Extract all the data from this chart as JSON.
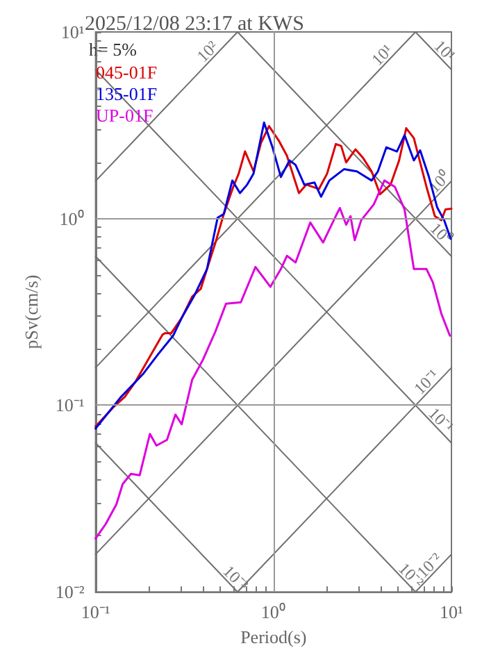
{
  "chart_data": {
    "type": "line",
    "title": "2025/12/08 23:17 at KWS",
    "xlabel": "Period(s)",
    "ylabel": "pSv(cm/s)",
    "log": "xy",
    "grid": true,
    "legend": "top left",
    "marker": "none",
    "xlim": [
      0.1,
      10
    ],
    "ylim": [
      0.01,
      10
    ],
    "xticks": [
      {
        "value": 0.1,
        "label": "10⁻¹"
      },
      {
        "value": 0.2,
        "label": null
      },
      {
        "value": 0.3,
        "label": null
      },
      {
        "value": 0.4,
        "label": null
      },
      {
        "value": 0.5,
        "label": null
      },
      {
        "value": 0.6,
        "label": null
      },
      {
        "value": 0.7,
        "label": null
      },
      {
        "value": 0.8,
        "label": null
      },
      {
        "value": 0.9,
        "label": null
      },
      {
        "value": 1,
        "label": "10⁰"
      },
      {
        "value": 2,
        "label": null
      },
      {
        "value": 3,
        "label": null
      },
      {
        "value": 4,
        "label": null
      },
      {
        "value": 5,
        "label": null
      },
      {
        "value": 6,
        "label": null
      },
      {
        "value": 7,
        "label": null
      },
      {
        "value": 8,
        "label": null
      },
      {
        "value": 9,
        "label": null
      },
      {
        "value": 10,
        "label": "10¹"
      }
    ],
    "yticks": [
      {
        "value": 0.01,
        "label": "10⁻²"
      },
      {
        "value": 0.02,
        "label": null
      },
      {
        "value": 0.03,
        "label": null
      },
      {
        "value": 0.04,
        "label": null
      },
      {
        "value": 0.05,
        "label": null
      },
      {
        "value": 0.06,
        "label": null
      },
      {
        "value": 0.07,
        "label": null
      },
      {
        "value": 0.08,
        "label": null
      },
      {
        "value": 0.09,
        "label": null
      },
      {
        "value": 0.1,
        "label": "10⁻¹"
      },
      {
        "value": 0.2,
        "label": null
      },
      {
        "value": 0.3,
        "label": null
      },
      {
        "value": 0.4,
        "label": null
      },
      {
        "value": 0.5,
        "label": null
      },
      {
        "value": 0.6,
        "label": null
      },
      {
        "value": 0.7,
        "label": null
      },
      {
        "value": 0.8,
        "label": null
      },
      {
        "value": 0.9,
        "label": null
      },
      {
        "value": 1,
        "label": "10⁰"
      },
      {
        "value": 2,
        "label": null
      },
      {
        "value": 3,
        "label": null
      },
      {
        "value": 4,
        "label": null
      },
      {
        "value": 5,
        "label": null
      },
      {
        "value": 6,
        "label": null
      },
      {
        "value": 7,
        "label": null
      },
      {
        "value": 8,
        "label": null
      },
      {
        "value": 9,
        "label": null
      },
      {
        "value": 10,
        "label": "10¹"
      }
    ],
    "series": [
      {
        "name": "045-01F",
        "color": "#dd0000",
        "x": [
          0.1,
          0.127,
          0.146,
          0.167,
          0.197,
          0.238,
          0.245,
          0.266,
          0.305,
          0.349,
          0.39,
          0.423,
          0.472,
          0.526,
          0.594,
          0.637,
          0.692,
          0.772,
          0.851,
          0.944,
          1.07,
          1.19,
          1.39,
          1.53,
          1.8,
          2.0,
          2.24,
          2.4,
          2.56,
          2.89,
          3.19,
          3.56,
          3.97,
          4.55,
          5.08,
          5.57,
          6.15,
          6.67,
          7.24,
          8.07,
          8.77,
          9.26,
          10
        ],
        "values": [
          0.0769,
          0.0984,
          0.111,
          0.133,
          0.175,
          0.239,
          0.243,
          0.243,
          0.294,
          0.382,
          0.42,
          0.537,
          0.745,
          1.06,
          1.48,
          1.74,
          2.29,
          1.79,
          2.55,
          3.13,
          2.62,
          2.17,
          1.37,
          1.52,
          1.44,
          1.74,
          2.51,
          2.45,
          2.0,
          2.35,
          2.11,
          1.79,
          1.35,
          1.52,
          2.05,
          3.05,
          2.7,
          2.0,
          1.48,
          1.03,
          0.98,
          1.12,
          1.13
        ]
      },
      {
        "name": "135-01F",
        "color": "#0000dd",
        "x": [
          0.1,
          0.138,
          0.186,
          0.226,
          0.273,
          0.305,
          0.359,
          0.423,
          0.485,
          0.526,
          0.587,
          0.648,
          0.711,
          0.772,
          0.885,
          0.987,
          1.1,
          1.23,
          1.33,
          1.49,
          1.7,
          1.85,
          2.06,
          2.49,
          2.94,
          3.56,
          3.86,
          4.31,
          4.94,
          5.45,
          6.15,
          6.67,
          7.45,
          8.31,
          9.1,
          9.9
        ],
        "values": [
          0.075,
          0.11,
          0.148,
          0.189,
          0.236,
          0.294,
          0.387,
          0.537,
          1.01,
          1.06,
          1.6,
          1.37,
          1.52,
          1.74,
          3.27,
          2.41,
          1.67,
          2.05,
          1.94,
          1.52,
          1.56,
          1.31,
          1.6,
          1.84,
          1.79,
          1.6,
          1.79,
          2.41,
          2.29,
          2.8,
          2.05,
          2.32,
          1.69,
          1.15,
          0.98,
          0.78
        ]
      },
      {
        "name": "UP-01F",
        "color": "#dd00dd",
        "x": [
          0.1,
          0.114,
          0.131,
          0.142,
          0.158,
          0.177,
          0.202,
          0.22,
          0.252,
          0.281,
          0.305,
          0.349,
          0.401,
          0.472,
          0.541,
          0.655,
          0.792,
          0.96,
          1.1,
          1.19,
          1.33,
          1.61,
          1.9,
          2.18,
          2.36,
          2.56,
          2.71,
          2.86,
          3.11,
          3.66,
          4.2,
          4.81,
          5.45,
          6.15,
          7.24,
          7.86,
          8.77,
          9.8
        ],
        "values": [
          0.0193,
          0.0231,
          0.0295,
          0.0378,
          0.0429,
          0.0422,
          0.0702,
          0.0608,
          0.0653,
          0.0891,
          0.0791,
          0.137,
          0.175,
          0.249,
          0.35,
          0.356,
          0.551,
          0.431,
          0.537,
          0.632,
          0.582,
          0.953,
          0.745,
          0.98,
          1.14,
          0.927,
          1.03,
          0.766,
          0.98,
          1.19,
          1.6,
          1.48,
          1.12,
          0.537,
          0.537,
          0.456,
          0.31,
          0.236
        ]
      },
      {
        "color": "#707070",
        "x": [
          0.1,
          0.628
        ],
        "values": [
          1.59,
          10
        ]
      },
      {
        "color": "#707070",
        "x": [
          0.1,
          6.28
        ],
        "values": [
          0.159,
          10
        ]
      },
      {
        "color": "#707070",
        "x": [
          0.1,
          10
        ],
        "values": [
          0.0159,
          1.59
        ]
      },
      {
        "color": "#707070",
        "x": [
          0.628,
          10
        ],
        "values": [
          0.01,
          0.159
        ]
      },
      {
        "color": "#707070",
        "x": [
          6.28,
          10
        ],
        "values": [
          0.01,
          0.0159
        ]
      },
      {
        "color": "#707070",
        "x": [
          6.28,
          10
        ],
        "values": [
          10,
          6.28
        ]
      },
      {
        "color": "#707070",
        "x": [
          0.628,
          10
        ],
        "values": [
          10,
          0.628
        ]
      },
      {
        "color": "#707070",
        "x": [
          0.1,
          10
        ],
        "values": [
          6.28,
          0.0628
        ]
      },
      {
        "color": "#707070",
        "x": [
          0.1,
          6.28
        ],
        "values": [
          0.628,
          0.01
        ]
      },
      {
        "color": "#707070",
        "x": [
          0.1,
          0.628
        ],
        "values": [
          0.0628,
          0.01
        ]
      }
    ],
    "annotations": [
      "h= 5%",
      {
        "text": "10²",
        "x": 0.459,
        "y": 7.31
      },
      {
        "text": "10¹",
        "x": 4.4,
        "y": 7.0
      },
      {
        "text": "10¹",
        "x": 8.5,
        "y": 7.39
      },
      {
        "text": "10⁰",
        "x": 9.2,
        "y": 1.46
      },
      {
        "text": "10⁰",
        "x": 8.1,
        "y": 0.776
      },
      {
        "text": "10⁻¹",
        "x": 7.8,
        "y": 0.124
      },
      {
        "text": "10⁻¹",
        "x": 8.1,
        "y": 0.0776
      },
      {
        "text": "10⁻³",
        "x": 0.568,
        "y": 0.01106
      },
      {
        "text": "10⁻²",
        "x": 5.5,
        "y": 0.01142
      },
      {
        "text": "10⁻²",
        "x": 8.1,
        "y": 0.0129
      }
    ]
  }
}
